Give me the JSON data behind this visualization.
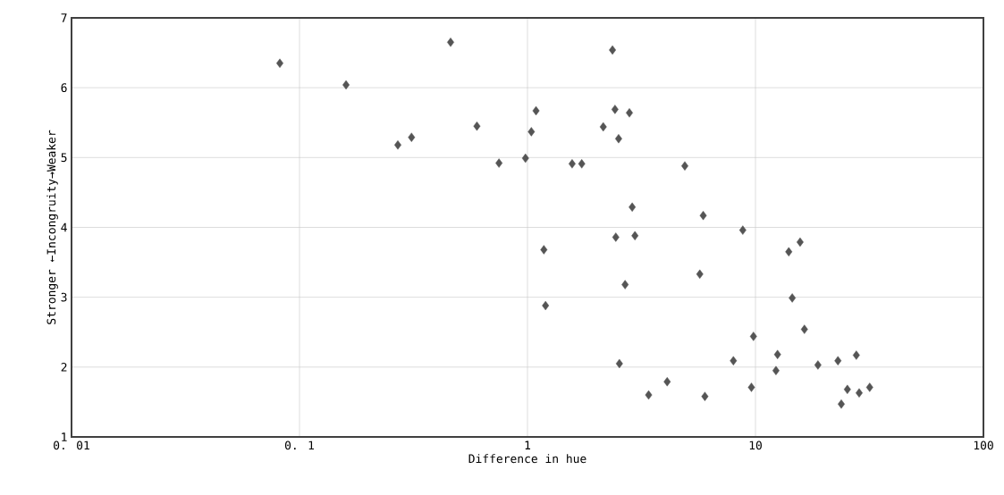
{
  "chart_data": {
    "type": "scatter",
    "xlabel": "Difference in hue",
    "ylabel": "Stronger ←Incongruity→Weaker",
    "log": "x",
    "grid": true,
    "marker": "diamond",
    "color": "#555555",
    "xlim": [
      0.01,
      100
    ],
    "ylim": [
      1,
      7
    ],
    "xticks": [
      {
        "value": 0.01,
        "label": "0. 01"
      },
      {
        "value": 0.1,
        "label": "0. 1"
      },
      1,
      10,
      100
    ],
    "yticks": [
      1,
      2,
      3,
      4,
      5,
      6,
      7
    ],
    "x": [
      0.082,
      0.16,
      0.46,
      0.27,
      0.31,
      0.6,
      0.75,
      0.98,
      1.04,
      1.09,
      1.18,
      1.2,
      1.57,
      1.73,
      2.15,
      2.36,
      2.42,
      2.51,
      2.44,
      2.53,
      2.68,
      2.8,
      2.88,
      2.96,
      3.4,
      4.1,
      4.9,
      5.7,
      5.9,
      6.0,
      8.0,
      8.8,
      9.6,
      9.8,
      12.3,
      12.5,
      14.0,
      14.5,
      15.7,
      16.4,
      18.8,
      23.0,
      23.8,
      25.3,
      27.7,
      28.5,
      31.7
    ],
    "values": [
      6.35,
      6.04,
      6.65,
      5.18,
      5.29,
      5.45,
      4.92,
      4.99,
      5.37,
      5.67,
      3.68,
      2.88,
      4.91,
      4.91,
      5.44,
      6.54,
      5.69,
      5.27,
      3.86,
      2.05,
      3.18,
      5.64,
      4.29,
      3.88,
      1.6,
      1.79,
      4.88,
      3.33,
      4.17,
      1.58,
      2.09,
      3.96,
      1.71,
      2.44,
      1.95,
      2.18,
      3.65,
      2.99,
      3.79,
      2.54,
      2.03,
      2.09,
      1.47,
      1.68,
      2.17,
      1.63,
      1.71
    ]
  }
}
